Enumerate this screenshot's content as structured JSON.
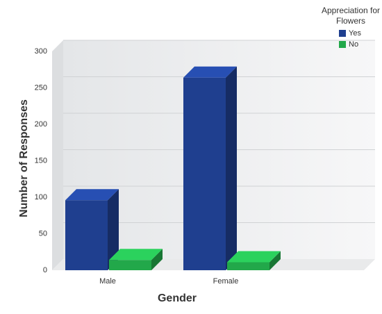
{
  "chart_data": {
    "type": "bar3d",
    "xlabel": "Gender",
    "ylabel": "Number of Responses",
    "categories": [
      "Male",
      "Female"
    ],
    "series": [
      {
        "name": "Yes",
        "color": "#1f3f8f",
        "values": [
          96,
          264
        ]
      },
      {
        "name": "No",
        "color": "#22a84a",
        "values": [
          14,
          11
        ]
      }
    ],
    "legend_title": "Appreciation for Flowers",
    "legend": "top-right",
    "ylim": [
      0,
      300
    ],
    "yticks": [
      0,
      50,
      100,
      150,
      200,
      250,
      300
    ],
    "grid": true
  }
}
